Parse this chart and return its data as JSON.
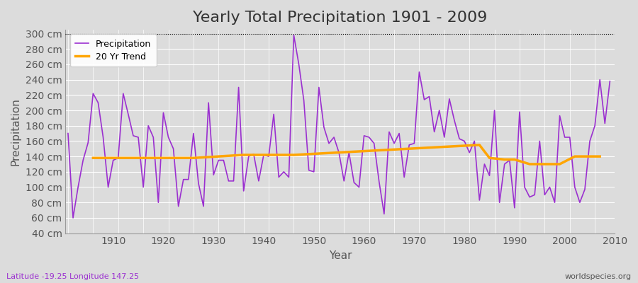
{
  "title": "Yearly Total Precipitation 1901 - 2009",
  "xlabel": "Year",
  "ylabel": "Precipitation",
  "latitude_label": "Latitude -19.25 Longitude 147.25",
  "watermark": "worldspecies.org",
  "ylim": [
    40,
    305
  ],
  "yticks": [
    40,
    60,
    80,
    100,
    120,
    140,
    160,
    180,
    200,
    220,
    240,
    260,
    280,
    300
  ],
  "years": [
    1901,
    1902,
    1903,
    1904,
    1905,
    1906,
    1907,
    1908,
    1909,
    1910,
    1911,
    1912,
    1913,
    1914,
    1915,
    1916,
    1917,
    1918,
    1919,
    1920,
    1921,
    1922,
    1923,
    1924,
    1925,
    1926,
    1927,
    1928,
    1929,
    1930,
    1931,
    1932,
    1933,
    1934,
    1935,
    1936,
    1937,
    1938,
    1939,
    1940,
    1941,
    1942,
    1943,
    1944,
    1945,
    1946,
    1947,
    1948,
    1949,
    1950,
    1951,
    1952,
    1953,
    1954,
    1955,
    1956,
    1957,
    1958,
    1959,
    1960,
    1961,
    1962,
    1963,
    1964,
    1965,
    1966,
    1967,
    1968,
    1969,
    1970,
    1971,
    1972,
    1973,
    1974,
    1975,
    1976,
    1977,
    1978,
    1979,
    1980,
    1981,
    1982,
    1983,
    1984,
    1985,
    1986,
    1987,
    1988,
    1989,
    1990,
    1991,
    1992,
    1993,
    1994,
    1995,
    1996,
    1997,
    1998,
    1999,
    2000,
    2001,
    2002,
    2003,
    2004,
    2005,
    2006,
    2007,
    2008,
    2009
  ],
  "precipitation": [
    170,
    60,
    100,
    135,
    158,
    222,
    210,
    165,
    100,
    135,
    138,
    222,
    195,
    167,
    165,
    100,
    180,
    165,
    80,
    197,
    165,
    150,
    75,
    110,
    110,
    170,
    105,
    75,
    210,
    116,
    135,
    135,
    108,
    108,
    230,
    95,
    140,
    143,
    108,
    142,
    140,
    195,
    113,
    120,
    113,
    298,
    260,
    213,
    122,
    120,
    230,
    178,
    157,
    165,
    145,
    108,
    145,
    106,
    100,
    167,
    165,
    157,
    107,
    65,
    172,
    157,
    170,
    113,
    155,
    157,
    250,
    214,
    218,
    172,
    200,
    165,
    215,
    187,
    163,
    160,
    145,
    160,
    83,
    130,
    115,
    200,
    80,
    130,
    135,
    73,
    198,
    100,
    87,
    90,
    160,
    90,
    100,
    80,
    193,
    165,
    165,
    100,
    80,
    97,
    160,
    180,
    240,
    183,
    238
  ],
  "trend_years": [
    1906,
    1926,
    1936,
    1946,
    1983,
    1985,
    1988,
    1990,
    1993,
    1995,
    1997,
    1999,
    2002,
    2007
  ],
  "trend_values": [
    138,
    138,
    142,
    142,
    155,
    138,
    136,
    136,
    130,
    130,
    130,
    130,
    140,
    140
  ],
  "precip_color": "#9b30d0",
  "trend_color": "#FFA500",
  "bg_color": "#dcdcdc",
  "plot_bg_color": "#dcdcdc",
  "grid_color": "#ffffff",
  "title_fontsize": 16,
  "label_fontsize": 11,
  "tick_fontsize": 10
}
